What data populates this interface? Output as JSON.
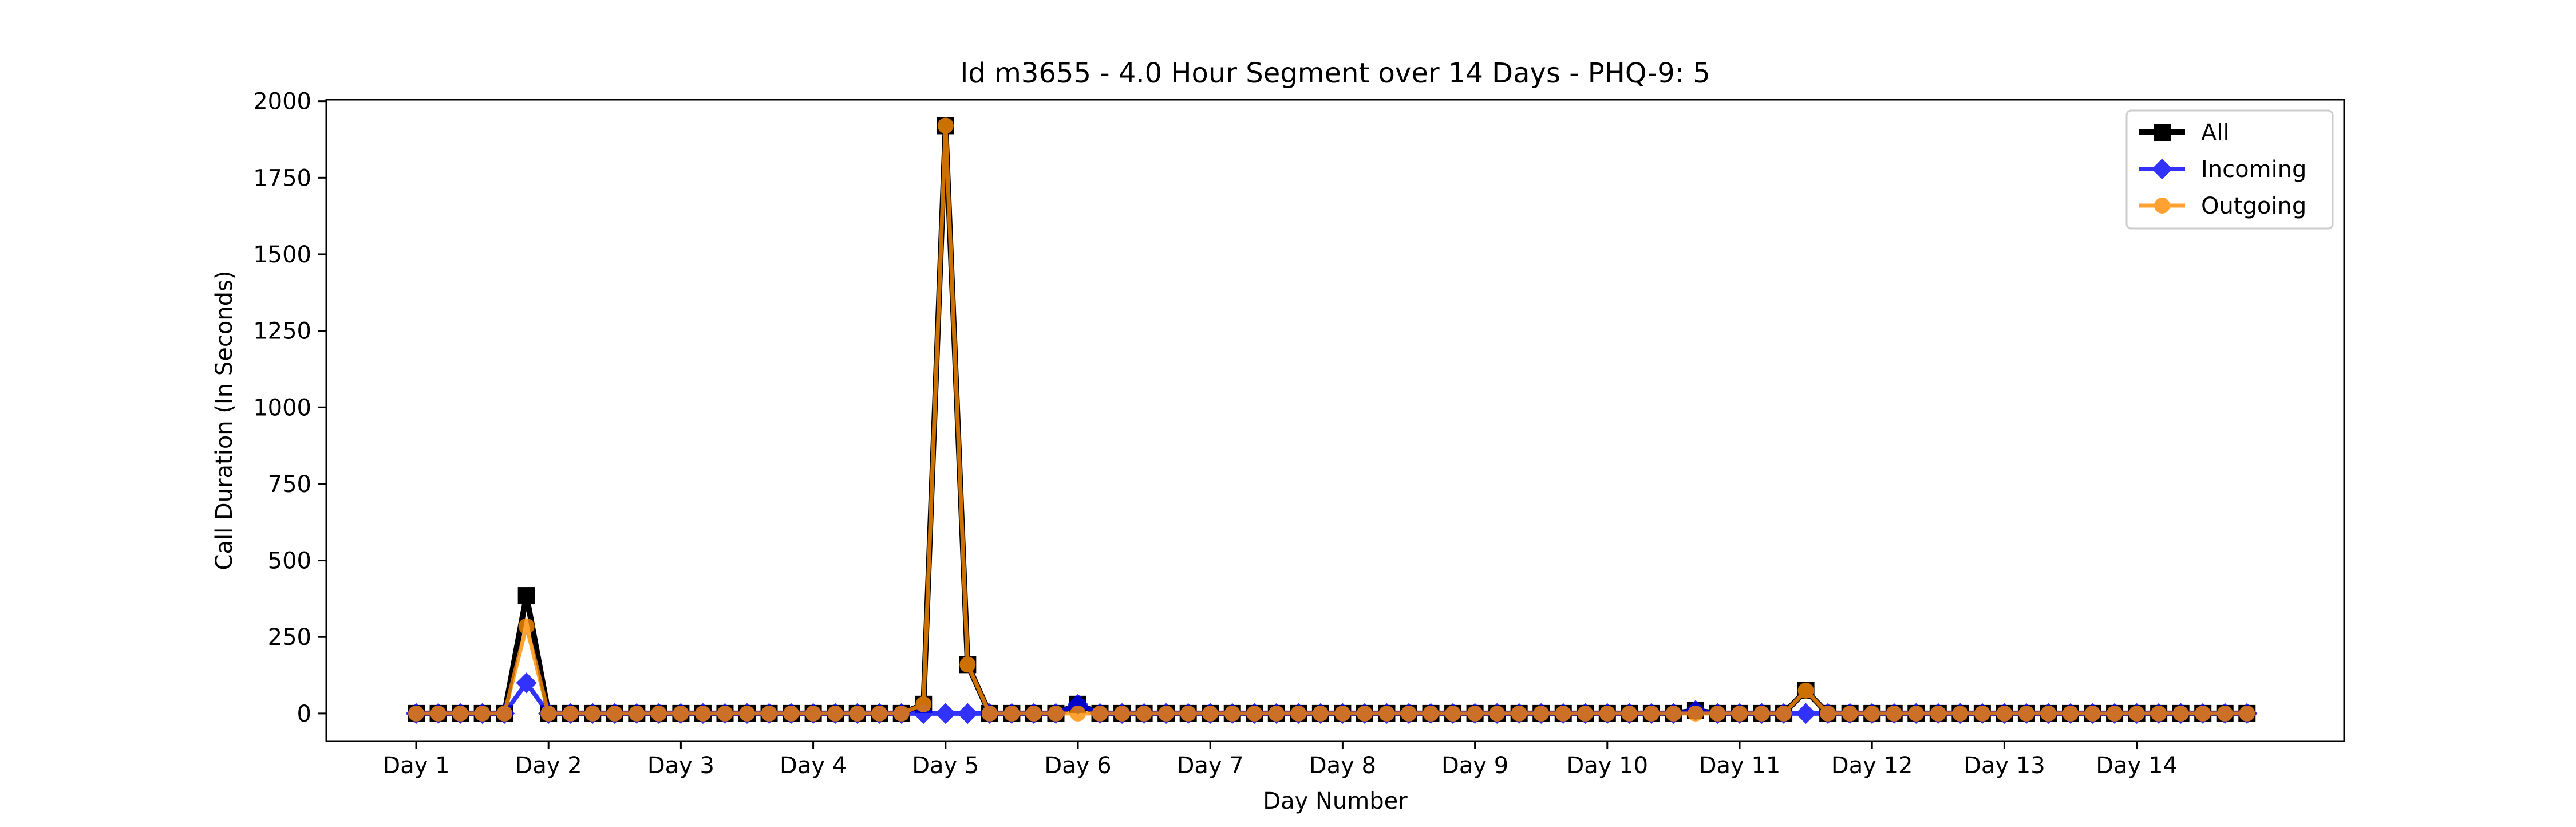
{
  "chart_data": {
    "type": "line",
    "title": "Id m3655 - 4.0 Hour Segment over 14 Days - PHQ-9: 5",
    "xlabel": "Day Number",
    "ylabel": "Call Duration (In Seconds)",
    "x_points_per_day": 6,
    "xticks": [
      "Day 1",
      "Day 2",
      "Day 3",
      "Day 4",
      "Day 5",
      "Day 6",
      "Day 7",
      "Day 8",
      "Day 9",
      "Day 10",
      "Day 11",
      "Day 12",
      "Day 13",
      "Day 14"
    ],
    "ylim": [
      -90,
      2005
    ],
    "yticks": [
      0,
      250,
      500,
      750,
      1000,
      1250,
      1500,
      1750,
      2000
    ],
    "grid": false,
    "legend_position": "top-right",
    "series": [
      {
        "name": "All",
        "color": "#000000",
        "marker": "square",
        "values": [
          0,
          0,
          0,
          0,
          0,
          385,
          0,
          0,
          0,
          0,
          0,
          0,
          0,
          0,
          0,
          0,
          0,
          0,
          0,
          0,
          0,
          0,
          0,
          30,
          1920,
          160,
          0,
          0,
          0,
          0,
          30,
          0,
          0,
          0,
          0,
          0,
          0,
          0,
          0,
          0,
          0,
          0,
          0,
          0,
          0,
          0,
          0,
          0,
          0,
          0,
          0,
          0,
          0,
          0,
          0,
          0,
          0,
          0,
          10,
          0,
          0,
          0,
          0,
          75,
          0,
          0,
          0,
          0,
          0,
          0,
          0,
          0,
          0,
          0,
          0,
          0,
          0,
          0,
          0,
          0,
          0,
          0,
          0,
          0
        ]
      },
      {
        "name": "Incoming",
        "color": "#0000ff",
        "marker": "diamond",
        "values": [
          0,
          0,
          0,
          0,
          0,
          100,
          0,
          0,
          0,
          0,
          0,
          0,
          0,
          0,
          0,
          0,
          0,
          0,
          0,
          0,
          0,
          0,
          0,
          0,
          0,
          0,
          0,
          0,
          0,
          0,
          30,
          0,
          0,
          0,
          0,
          0,
          0,
          0,
          0,
          0,
          0,
          0,
          0,
          0,
          0,
          0,
          0,
          0,
          0,
          0,
          0,
          0,
          0,
          0,
          0,
          0,
          0,
          0,
          10,
          0,
          0,
          0,
          0,
          0,
          0,
          0,
          0,
          0,
          0,
          0,
          0,
          0,
          0,
          0,
          0,
          0,
          0,
          0,
          0,
          0,
          0,
          0,
          0,
          0
        ]
      },
      {
        "name": "Outgoing",
        "color": "#ff8c00",
        "marker": "circle",
        "values": [
          0,
          0,
          0,
          0,
          0,
          285,
          0,
          0,
          0,
          0,
          0,
          0,
          0,
          0,
          0,
          0,
          0,
          0,
          0,
          0,
          0,
          0,
          0,
          30,
          1920,
          160,
          0,
          0,
          0,
          0,
          0,
          0,
          0,
          0,
          0,
          0,
          0,
          0,
          0,
          0,
          0,
          0,
          0,
          0,
          0,
          0,
          0,
          0,
          0,
          0,
          0,
          0,
          0,
          0,
          0,
          0,
          0,
          0,
          0,
          0,
          0,
          0,
          0,
          75,
          0,
          0,
          0,
          0,
          0,
          0,
          0,
          0,
          0,
          0,
          0,
          0,
          0,
          0,
          0,
          0,
          0,
          0,
          0,
          0
        ]
      }
    ]
  }
}
